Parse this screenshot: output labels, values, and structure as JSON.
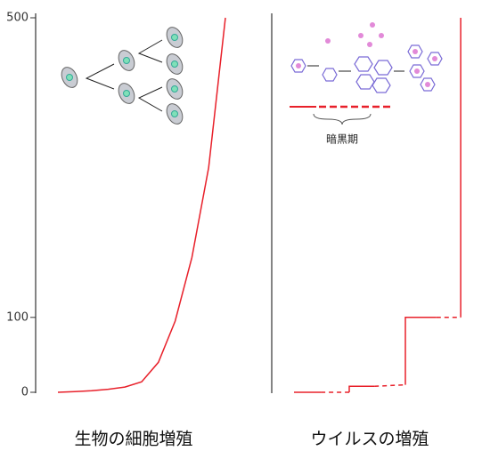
{
  "chart_data": [
    {
      "type": "line",
      "xlabel": "生物の細胞増殖",
      "xlim": [
        0,
        10
      ],
      "ylim": [
        0,
        500
      ],
      "yticks": [
        0,
        100,
        500
      ],
      "series": [
        {
          "color": "#e8202a",
          "style": "solid",
          "x": [
            0,
            1,
            2,
            3,
            4,
            5,
            6,
            7,
            8,
            9,
            10
          ],
          "values": [
            0,
            1,
            2,
            4,
            7,
            14,
            40,
            95,
            180,
            300,
            500
          ]
        }
      ]
    },
    {
      "type": "line",
      "xlabel": "ウイルスの増殖",
      "annotation": "暗黒期",
      "xlim": [
        0,
        10
      ],
      "ylim": [
        0,
        500
      ],
      "series": [
        {
          "color": "#e8202a",
          "style": "solid",
          "x": [
            0,
            1.6,
            null,
            3.3,
            3.3,
            4.8,
            null,
            6.65,
            6.65,
            8.5,
            null,
            9.95,
            9.95
          ],
          "values": [
            0,
            0,
            null,
            0,
            8,
            8,
            null,
            10,
            100,
            100,
            null,
            100,
            500
          ]
        },
        {
          "color": "#e8202a",
          "style": "dashed",
          "x": [
            1.6,
            3.3,
            null,
            4.8,
            6.65,
            null,
            8.5,
            9.95
          ],
          "values": [
            0,
            0,
            null,
            8,
            10,
            null,
            100,
            100
          ]
        }
      ]
    }
  ]
}
